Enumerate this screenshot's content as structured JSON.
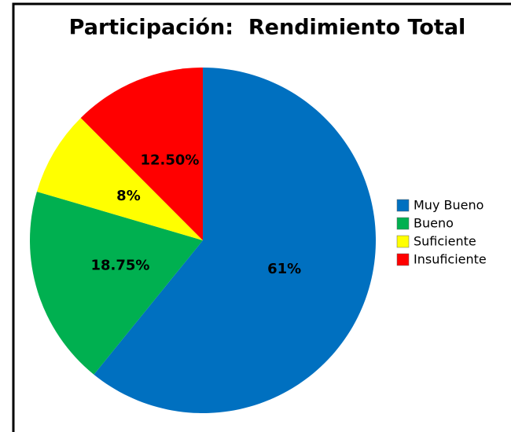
{
  "chart_data": {
    "type": "pie",
    "title": "Participación:  Rendimiento Total",
    "categories": [
      "Muy Bueno",
      "Bueno",
      "Suficiente",
      "Insuficiente"
    ],
    "values": [
      61,
      18.75,
      8,
      12.5
    ],
    "value_labels": [
      "61%",
      "18.75%",
      "8%",
      "12.50%"
    ],
    "colors": [
      "#0070c0",
      "#00b050",
      "#ffff00",
      "#ff0000"
    ],
    "legend": "right"
  }
}
